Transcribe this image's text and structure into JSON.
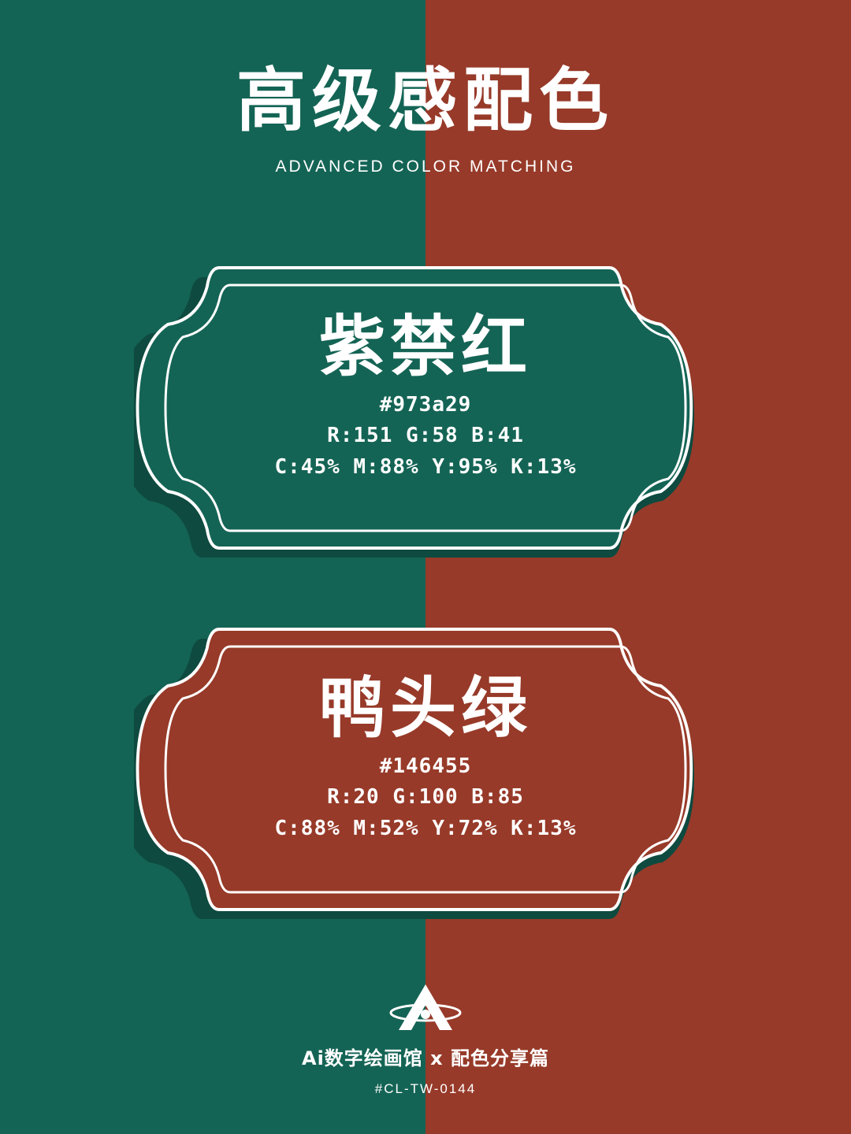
{
  "colors": {
    "green": "#146455",
    "red": "#973a29",
    "shadow_on_green": "#0e4a3f",
    "shadow_on_red": "#6e2a1e",
    "white": "#ffffff"
  },
  "header": {
    "title": "高级感配色",
    "subtitle": "ADVANCED COLOR MATCHING"
  },
  "cards": [
    {
      "name": "紫禁红",
      "hex": "#973a29",
      "rgb": "R:151  G:58  B:41",
      "cmyk": "C:45%  M:88%  Y:95%  K:13%",
      "fill_color": "#146455"
    },
    {
      "name": "鸭头绿",
      "hex": "#146455",
      "rgb": "R:20  G:100  B:85",
      "cmyk": "C:88%  M:52%  Y:72%  K:13%",
      "fill_color": "#973a29"
    }
  ],
  "footer": {
    "brand": "Ai数字绘画馆 x 配色分享篇",
    "code": "#CL-TW-0144",
    "logo_icon": "triangle-a-ring-logo-icon"
  }
}
